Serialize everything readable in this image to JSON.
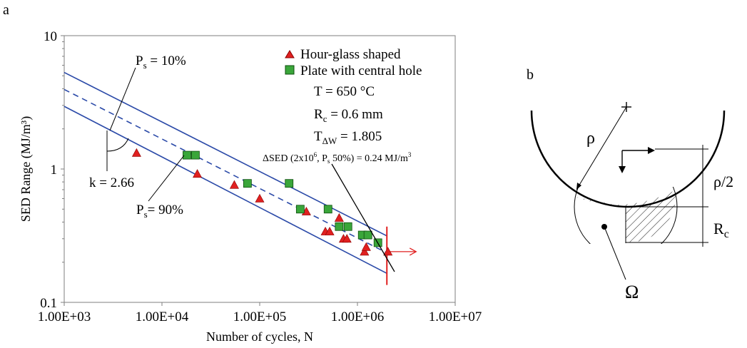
{
  "panel_labels": {
    "a": "a",
    "b": "b"
  },
  "colors": {
    "band": "#2b4aa8",
    "triangle_fill": "#e02020",
    "triangle_stroke": "#8b0000",
    "square_fill": "#3aa63a",
    "square_stroke": "#0d4d0d",
    "limit": "#e02020"
  },
  "chart_data": {
    "type": "scatter",
    "x_scale": "log",
    "y_scale": "log",
    "xlim": [
      1000,
      10000000
    ],
    "ylim": [
      0.1,
      10
    ],
    "xlabel": "Number of cycles, N",
    "ylabel": "SED Range (MJ/m³)",
    "x_ticks": [
      {
        "value": 1000,
        "label": "1.00E+03"
      },
      {
        "value": 10000,
        "label": "1.00E+04"
      },
      {
        "value": 100000,
        "label": "1.00E+05"
      },
      {
        "value": 1000000,
        "label": "1.00E+06"
      },
      {
        "value": 10000000,
        "label": "1.00E+07"
      }
    ],
    "y_ticks": [
      {
        "value": 0.1,
        "label": "0.1"
      },
      {
        "value": 1,
        "label": "1"
      },
      {
        "value": 10,
        "label": "10"
      }
    ],
    "legend": {
      "placement": "top-right"
    },
    "series": [
      {
        "name": "Hour-glass shaped",
        "marker": "triangle",
        "points": [
          [
            5500,
            1.32
          ],
          [
            23000,
            0.92
          ],
          [
            55000,
            0.76
          ],
          [
            100000,
            0.6
          ],
          [
            300000,
            0.48
          ],
          [
            470000,
            0.34
          ],
          [
            520000,
            0.34
          ],
          [
            650000,
            0.43
          ],
          [
            720000,
            0.3
          ],
          [
            780000,
            0.3
          ],
          [
            1180000,
            0.24
          ],
          [
            1230000,
            0.26
          ],
          [
            2050000,
            0.24
          ]
        ]
      },
      {
        "name": "Plate with central hole",
        "marker": "square",
        "points": [
          [
            18000,
            1.27
          ],
          [
            22000,
            1.27
          ],
          [
            75000,
            0.78
          ],
          [
            200000,
            0.78
          ],
          [
            260000,
            0.5
          ],
          [
            500000,
            0.5
          ],
          [
            650000,
            0.37
          ],
          [
            800000,
            0.37
          ],
          [
            1120000,
            0.32
          ],
          [
            1280000,
            0.32
          ],
          [
            1620000,
            0.28
          ]
        ]
      }
    ],
    "scatter_bands": [
      {
        "name": "P₉₀",
        "label": "Ps = 10%",
        "style": "solid",
        "x": [
          1000,
          2000000
        ],
        "y": [
          5.3,
          0.315
        ]
      },
      {
        "name": "P₅₀",
        "label": "",
        "style": "dashed",
        "x": [
          1000,
          2000000
        ],
        "y": [
          3.95,
          0.235
        ]
      },
      {
        "name": "P₁₀",
        "label": "Ps= 90%",
        "style": "solid",
        "x": [
          1000,
          2000000
        ],
        "y": [
          2.95,
          0.165
        ]
      }
    ],
    "vertical_limit": {
      "x": 2000000,
      "y_range": [
        0.135,
        0.37
      ]
    },
    "annotations": {
      "temperature": "T = 650 °C",
      "rc": "Rc = 0.6 mm",
      "scatter_index": "TΔW = 1.805",
      "sed_value": "ΔSED (2x10⁶, Ps 50%) = 0.24 MJ/m³",
      "slope": "k = 2.66",
      "band_upper": "Ps = 10%",
      "band_lower": "Ps= 90%"
    }
  },
  "diagram_b": {
    "rho": "ρ",
    "rho_half": "ρ/2",
    "rc": "Rc",
    "omega": "Ω"
  }
}
